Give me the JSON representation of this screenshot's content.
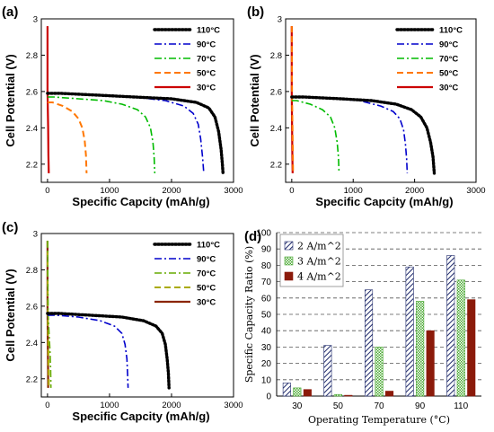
{
  "chart_data": [
    {
      "panel": "(a)",
      "type": "line",
      "xlabel": "Specific Capcity (mAh/g)",
      "ylabel": "Cell Potential (V)",
      "xlim": [
        -100,
        3000
      ],
      "ylim": [
        2.1,
        3.0
      ],
      "xticks": [
        "0",
        "1000",
        "2000",
        "3000"
      ],
      "yticks": [
        "2.2",
        "2.4",
        "2.6",
        "2.8",
        "3"
      ],
      "legend_position": "top-right",
      "series": [
        {
          "name": "110°C",
          "color": "#000000",
          "style": "dotted",
          "x": [
            0,
            200,
            800,
            1400,
            2000,
            2400,
            2600,
            2700,
            2760,
            2800,
            2820,
            2830
          ],
          "y": [
            2.59,
            2.59,
            2.58,
            2.57,
            2.56,
            2.54,
            2.51,
            2.46,
            2.38,
            2.28,
            2.2,
            2.15
          ]
        },
        {
          "name": "90°C",
          "color": "#0000cc",
          "style": "dashdot",
          "x": [
            0,
            200,
            800,
            1400,
            1900,
            2200,
            2350,
            2430,
            2470,
            2500,
            2520
          ],
          "y": [
            2.59,
            2.59,
            2.58,
            2.57,
            2.55,
            2.52,
            2.48,
            2.42,
            2.34,
            2.24,
            2.15
          ]
        },
        {
          "name": "70°C",
          "color": "#00bb00",
          "style": "dashdot",
          "x": [
            0,
            100,
            500,
            900,
            1200,
            1450,
            1580,
            1660,
            1700,
            1720,
            1730
          ],
          "y": [
            2.57,
            2.57,
            2.56,
            2.55,
            2.53,
            2.5,
            2.46,
            2.4,
            2.32,
            2.24,
            2.15
          ]
        },
        {
          "name": "50°C",
          "color": "#ff7700",
          "style": "dashed",
          "x": [
            0,
            80,
            250,
            400,
            500,
            560,
            600,
            620,
            630
          ],
          "y": [
            2.54,
            2.54,
            2.52,
            2.49,
            2.45,
            2.4,
            2.33,
            2.25,
            2.15
          ]
        },
        {
          "name": "30°C",
          "color": "#cc0000",
          "style": "solid",
          "x": [
            0,
            0,
            10,
            15,
            20
          ],
          "y": [
            2.96,
            2.6,
            2.4,
            2.25,
            2.15
          ]
        }
      ]
    },
    {
      "panel": "(b)",
      "type": "line",
      "xlabel": "Specific Capcity (mAh/g)",
      "ylabel": "Cell Potential (V)",
      "xlim": [
        -100,
        3000
      ],
      "ylim": [
        2.1,
        3.0
      ],
      "xticks": [
        "0",
        "1000",
        "2000",
        "3000"
      ],
      "yticks": [
        "2.2",
        "2.4",
        "2.6",
        "2.8",
        "3"
      ],
      "legend_position": "top-right",
      "series": [
        {
          "name": "110°C",
          "color": "#000000",
          "style": "dotted",
          "x": [
            0,
            200,
            800,
            1300,
            1700,
            1950,
            2100,
            2200,
            2260,
            2300,
            2320
          ],
          "y": [
            2.57,
            2.57,
            2.56,
            2.55,
            2.53,
            2.5,
            2.46,
            2.4,
            2.32,
            2.24,
            2.15
          ]
        },
        {
          "name": "90°C",
          "color": "#0000cc",
          "style": "dashdot",
          "x": [
            0,
            200,
            700,
            1100,
            1450,
            1650,
            1760,
            1820,
            1850,
            1870,
            1880
          ],
          "y": [
            2.57,
            2.57,
            2.56,
            2.55,
            2.52,
            2.49,
            2.45,
            2.39,
            2.31,
            2.23,
            2.15
          ]
        },
        {
          "name": "70°C",
          "color": "#00bb00",
          "style": "dashdot",
          "x": [
            0,
            80,
            300,
            500,
            630,
            700,
            740,
            760,
            770
          ],
          "y": [
            2.55,
            2.55,
            2.53,
            2.5,
            2.46,
            2.4,
            2.32,
            2.24,
            2.15
          ]
        },
        {
          "name": "50°C",
          "color": "#ff7700",
          "style": "dashed",
          "x": [
            0,
            5,
            12,
            18,
            22
          ],
          "y": [
            2.96,
            2.55,
            2.4,
            2.25,
            2.15
          ]
        },
        {
          "name": "30°C",
          "color": "#cc0000",
          "style": "solid",
          "x": [
            0,
            0,
            6,
            10,
            14
          ],
          "y": [
            2.96,
            2.6,
            2.4,
            2.25,
            2.15
          ]
        }
      ]
    },
    {
      "panel": "(c)",
      "type": "line",
      "xlabel": "Specific Capcity (mAh/g)",
      "ylabel": "Cell Potential (V)",
      "xlim": [
        -100,
        3000
      ],
      "ylim": [
        2.1,
        3.0
      ],
      "xticks": [
        "0",
        "1000",
        "2000",
        "3000"
      ],
      "yticks": [
        "2.2",
        "2.4",
        "2.6",
        "2.8",
        "3"
      ],
      "legend_position": "top-right",
      "series": [
        {
          "name": "110°C",
          "color": "#000000",
          "style": "dotted",
          "x": [
            0,
            200,
            700,
            1200,
            1550,
            1750,
            1850,
            1900,
            1930,
            1950,
            1960
          ],
          "y": [
            2.56,
            2.56,
            2.55,
            2.54,
            2.52,
            2.49,
            2.45,
            2.39,
            2.31,
            2.23,
            2.15
          ]
        },
        {
          "name": "90°C",
          "color": "#0000cc",
          "style": "dashdot",
          "x": [
            0,
            150,
            500,
            850,
            1080,
            1200,
            1250,
            1280,
            1290,
            1300
          ],
          "y": [
            2.55,
            2.55,
            2.54,
            2.52,
            2.49,
            2.45,
            2.39,
            2.31,
            2.23,
            2.15
          ]
        },
        {
          "name": "70°C",
          "color": "#66aa00",
          "style": "dashdot",
          "x": [
            0,
            10,
            25,
            40,
            50,
            55
          ],
          "y": [
            2.96,
            2.55,
            2.45,
            2.35,
            2.25,
            2.15
          ]
        },
        {
          "name": "50°C",
          "color": "#aaaa00",
          "style": "dashed",
          "x": [
            0,
            5,
            12,
            18,
            22
          ],
          "y": [
            2.96,
            2.55,
            2.4,
            2.25,
            2.15
          ]
        },
        {
          "name": "30°C",
          "color": "#8b2500",
          "style": "solid",
          "x": [
            0,
            0,
            5,
            8,
            10
          ],
          "y": [
            2.96,
            2.6,
            2.4,
            2.25,
            2.15
          ]
        }
      ]
    },
    {
      "panel": "(d)",
      "type": "bar",
      "xlabel": "Operating Temperature (°C)",
      "ylabel": "Specific Capacity Ratio (%)",
      "categories": [
        "30",
        "50",
        "70",
        "90",
        "110"
      ],
      "ylim": [
        0,
        100
      ],
      "yticks": [
        "0",
        "10",
        "20",
        "30",
        "40",
        "50",
        "60",
        "70",
        "80",
        "90",
        "100"
      ],
      "grid": true,
      "legend_position": "top-left",
      "series": [
        {
          "name": "2 A/m^2",
          "color": "#1f2a6b",
          "pattern": "diagonal-hatch",
          "values": [
            8,
            31,
            65,
            79,
            86
          ]
        },
        {
          "name": "3 A/m^2",
          "color": "#4aa832",
          "pattern": "checker",
          "values": [
            5,
            1,
            30,
            58,
            71
          ]
        },
        {
          "name": "4 A/m^2",
          "color": "#8b1a0a",
          "pattern": "solid",
          "values": [
            4,
            0.5,
            3,
            40,
            59
          ]
        }
      ]
    }
  ]
}
